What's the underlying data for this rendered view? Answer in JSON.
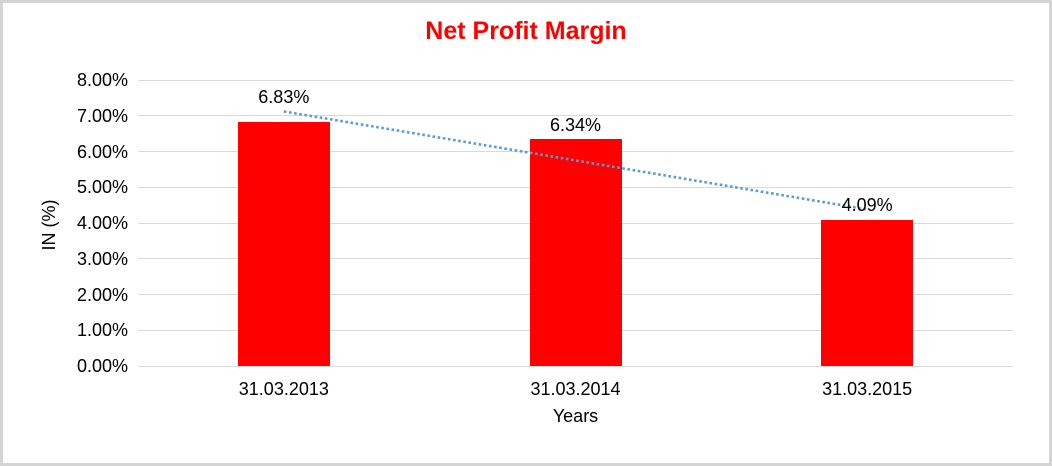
{
  "chart_data": {
    "type": "bar",
    "title": "Net Profit Margin",
    "categories": [
      "31.03.2013",
      "31.03.2014",
      "31.03.2015"
    ],
    "values": [
      6.83,
      6.34,
      4.09
    ],
    "data_labels": [
      "6.83%",
      "6.34%",
      "4.09%"
    ],
    "xlabel": "Years",
    "ylabel": "IN (%)",
    "y_ticks": [
      "8.00%",
      "7.00%",
      "6.00%",
      "5.00%",
      "4.00%",
      "3.00%",
      "2.00%",
      "1.00%",
      "0.00%"
    ],
    "ylim": [
      0,
      8
    ],
    "grid": true,
    "legend_position": "none",
    "trendline": {
      "type": "linear",
      "style": "dotted",
      "start_value": 7.12,
      "end_value": 4.38
    },
    "colors": {
      "title": "#ff0000",
      "bar": "#ff0000",
      "gridline": "#d9d9d9",
      "axis_text": "#000000",
      "trendline": "#5b9bd5",
      "canvas_border": "#d4d4d4",
      "background": "#ffffff"
    }
  }
}
